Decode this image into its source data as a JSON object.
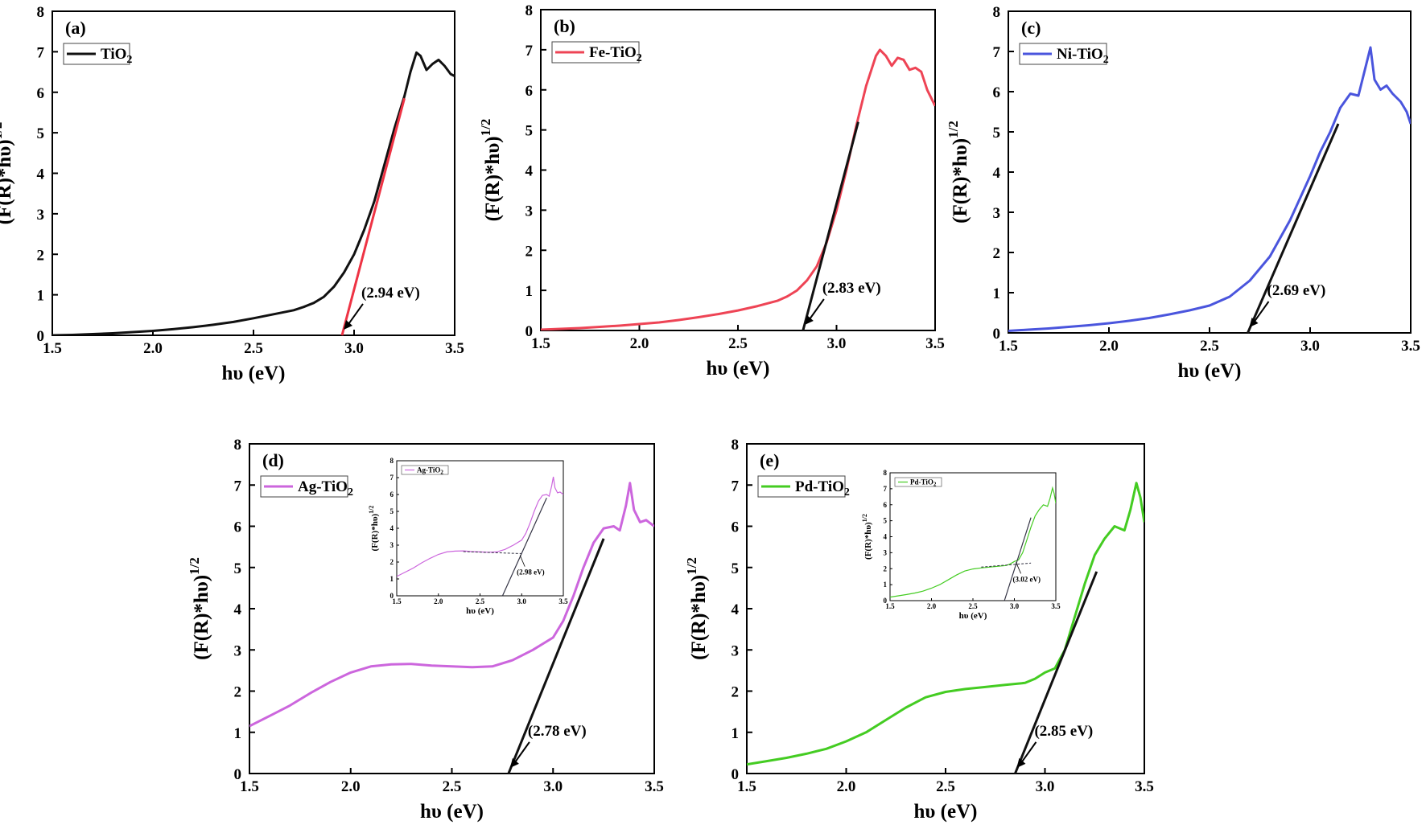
{
  "chart_data": [
    {
      "type": "line",
      "panel_label": "(a)",
      "xlabel": "hυ (eV)",
      "ylabel": "(F(R)*hυ)",
      "ylabel_sup": "1/2",
      "xlim": [
        1.5,
        3.5
      ],
      "ylim": [
        0,
        8
      ],
      "xticks": [
        "1.5",
        "2.0",
        "2.5",
        "3.0",
        "3.5"
      ],
      "yticks": [
        "0",
        "1",
        "2",
        "3",
        "4",
        "5",
        "6",
        "7",
        "8"
      ],
      "legend": {
        "name": "TiO",
        "sub": "2",
        "position": "top-left"
      },
      "series": [
        {
          "name": "TiO2",
          "color": "#111111",
          "x": [
            1.5,
            1.6,
            1.7,
            1.8,
            1.9,
            2.0,
            2.1,
            2.2,
            2.3,
            2.4,
            2.5,
            2.6,
            2.7,
            2.75,
            2.8,
            2.85,
            2.9,
            2.95,
            3.0,
            3.05,
            3.1,
            3.15,
            3.2,
            3.25,
            3.28,
            3.31,
            3.33,
            3.36,
            3.39,
            3.42,
            3.45,
            3.48,
            3.5
          ],
          "y": [
            0.0,
            0.01,
            0.03,
            0.05,
            0.08,
            0.11,
            0.15,
            0.2,
            0.26,
            0.33,
            0.42,
            0.52,
            0.62,
            0.7,
            0.8,
            0.95,
            1.2,
            1.55,
            2.0,
            2.6,
            3.3,
            4.2,
            5.1,
            5.9,
            6.5,
            6.98,
            6.9,
            6.55,
            6.7,
            6.8,
            6.65,
            6.45,
            6.4
          ]
        }
      ],
      "fit_line": {
        "x": [
          2.94,
          3.25
        ],
        "y": [
          0.0,
          5.85
        ],
        "color": "#ee3344"
      },
      "annotation": {
        "text": "(2.94 eV)",
        "x": 2.94
      }
    },
    {
      "type": "line",
      "panel_label": "(b)",
      "xlabel": "hυ (eV)",
      "ylabel": "(F(R)*hυ)",
      "ylabel_sup": "1/2",
      "xlim": [
        1.5,
        3.5
      ],
      "ylim": [
        0,
        8
      ],
      "xticks": [
        "1.5",
        "2.0",
        "2.5",
        "3.0",
        "3.5"
      ],
      "yticks": [
        "0",
        "1",
        "2",
        "3",
        "4",
        "5",
        "6",
        "7",
        "8"
      ],
      "legend": {
        "name": "Fe-TiO",
        "sub": "2",
        "position": "top-left"
      },
      "series": [
        {
          "name": "Fe-TiO2",
          "color": "#ee4455",
          "x": [
            1.5,
            1.6,
            1.7,
            1.8,
            1.9,
            2.0,
            2.1,
            2.2,
            2.3,
            2.4,
            2.5,
            2.6,
            2.7,
            2.75,
            2.8,
            2.85,
            2.9,
            2.95,
            3.0,
            3.05,
            3.1,
            3.15,
            3.2,
            3.22,
            3.25,
            3.28,
            3.31,
            3.34,
            3.37,
            3.4,
            3.43,
            3.46,
            3.5
          ],
          "y": [
            0.02,
            0.04,
            0.06,
            0.09,
            0.12,
            0.16,
            0.2,
            0.26,
            0.33,
            0.41,
            0.5,
            0.61,
            0.74,
            0.85,
            1.0,
            1.25,
            1.6,
            2.2,
            3.0,
            4.0,
            5.1,
            6.1,
            6.85,
            7.0,
            6.85,
            6.6,
            6.8,
            6.75,
            6.5,
            6.55,
            6.45,
            6.0,
            5.6
          ]
        }
      ],
      "fit_line": {
        "x": [
          2.83,
          3.11
        ],
        "y": [
          0.0,
          5.2
        ],
        "color": "#111111"
      },
      "annotation": {
        "text": "(2.83 eV)",
        "x": 2.83
      }
    },
    {
      "type": "line",
      "panel_label": "(c)",
      "xlabel": "hυ (eV)",
      "ylabel": "(F(R)*hυ)",
      "ylabel_sup": "1/2",
      "xlim": [
        1.5,
        3.5
      ],
      "ylim": [
        0,
        8
      ],
      "xticks": [
        "1.5",
        "2.0",
        "2.5",
        "3.0",
        "3.5"
      ],
      "yticks": [
        "0",
        "1",
        "2",
        "3",
        "4",
        "5",
        "6",
        "7",
        "8"
      ],
      "legend": {
        "name": "Ni-TiO",
        "sub": "2",
        "position": "top-left"
      },
      "series": [
        {
          "name": "Ni-TiO2",
          "color": "#4a55dd",
          "x": [
            1.5,
            1.6,
            1.7,
            1.8,
            1.9,
            2.0,
            2.1,
            2.2,
            2.3,
            2.4,
            2.5,
            2.6,
            2.7,
            2.8,
            2.9,
            3.0,
            3.05,
            3.1,
            3.15,
            3.2,
            3.24,
            3.27,
            3.3,
            3.32,
            3.35,
            3.38,
            3.41,
            3.45,
            3.48,
            3.5
          ],
          "y": [
            0.05,
            0.08,
            0.11,
            0.15,
            0.19,
            0.24,
            0.3,
            0.37,
            0.46,
            0.56,
            0.68,
            0.9,
            1.3,
            1.9,
            2.8,
            3.9,
            4.5,
            5.0,
            5.6,
            5.95,
            5.9,
            6.5,
            7.1,
            6.3,
            6.05,
            6.15,
            5.95,
            5.75,
            5.5,
            5.2
          ]
        }
      ],
      "fit_line": {
        "x": [
          2.69,
          3.14
        ],
        "y": [
          0.0,
          5.2
        ],
        "color": "#111111"
      },
      "annotation": {
        "text": "(2.69 eV)",
        "x": 2.69
      }
    },
    {
      "type": "line",
      "panel_label": "(d)",
      "xlabel": "hυ (eV)",
      "ylabel": "(F(R)*hυ)",
      "ylabel_sup": "1/2",
      "xlim": [
        1.5,
        3.5
      ],
      "ylim": [
        0,
        8
      ],
      "xticks": [
        "1.5",
        "2.0",
        "2.5",
        "3.0",
        "3.5"
      ],
      "yticks": [
        "0",
        "1",
        "2",
        "3",
        "4",
        "5",
        "6",
        "7",
        "8"
      ],
      "legend": {
        "name": "Ag-TiO",
        "sub": "2",
        "position": "top-left"
      },
      "series": [
        {
          "name": "Ag-TiO2",
          "color": "#cc66dd",
          "x": [
            1.5,
            1.6,
            1.7,
            1.8,
            1.9,
            2.0,
            2.1,
            2.2,
            2.3,
            2.4,
            2.5,
            2.6,
            2.7,
            2.8,
            2.9,
            3.0,
            3.05,
            3.1,
            3.15,
            3.2,
            3.25,
            3.3,
            3.33,
            3.36,
            3.38,
            3.4,
            3.43,
            3.46,
            3.5
          ],
          "y": [
            1.15,
            1.4,
            1.65,
            1.95,
            2.22,
            2.45,
            2.6,
            2.65,
            2.66,
            2.62,
            2.6,
            2.58,
            2.6,
            2.75,
            3.0,
            3.3,
            3.7,
            4.3,
            5.0,
            5.6,
            5.95,
            6.0,
            5.9,
            6.5,
            7.05,
            6.4,
            6.1,
            6.15,
            6.0
          ]
        }
      ],
      "fit_line": {
        "x": [
          2.78,
          3.25
        ],
        "y": [
          0.0,
          5.7
        ],
        "color": "#111111"
      },
      "annotation": {
        "text": "(2.78 eV)",
        "x": 2.78
      },
      "inset": {
        "xlabel": "hυ (eV)",
        "ylabel": "(F(R)*hυ)",
        "ylabel_sup": "1/2",
        "xticks": [
          "1.5",
          "2.0",
          "2.5",
          "3.0",
          "3.5"
        ],
        "yticks": [
          "0",
          "1",
          "2",
          "3",
          "4",
          "5",
          "6",
          "7",
          "8"
        ],
        "legend": {
          "name": "Ag-TiO",
          "sub": "2"
        },
        "baseline_line": {
          "x": [
            2.3,
            3.0
          ],
          "y": [
            2.62,
            2.5
          ]
        },
        "fit_line": {
          "x": [
            2.77,
            3.3
          ],
          "y": [
            0.0,
            5.8
          ]
        },
        "annotation": {
          "text": "(2.98 eV)",
          "x": 2.98
        }
      }
    },
    {
      "type": "line",
      "panel_label": "(e)",
      "xlabel": "hυ (eV)",
      "ylabel": "(F(R)*hυ)",
      "ylabel_sup": "1/2",
      "xlim": [
        1.5,
        3.5
      ],
      "ylim": [
        0,
        8
      ],
      "xticks": [
        "1.5",
        "2.0",
        "2.5",
        "3.0",
        "3.5"
      ],
      "yticks": [
        "0",
        "1",
        "2",
        "3",
        "4",
        "5",
        "6",
        "7",
        "8"
      ],
      "legend": {
        "name": "Pd-TiO",
        "sub": "2",
        "position": "top-left"
      },
      "series": [
        {
          "name": "Pd-TiO2",
          "color": "#44cc22",
          "x": [
            1.5,
            1.6,
            1.7,
            1.8,
            1.9,
            2.0,
            2.1,
            2.2,
            2.3,
            2.4,
            2.5,
            2.6,
            2.7,
            2.8,
            2.9,
            2.95,
            3.0,
            3.05,
            3.1,
            3.15,
            3.2,
            3.25,
            3.3,
            3.35,
            3.4,
            3.43,
            3.46,
            3.48,
            3.5
          ],
          "y": [
            0.22,
            0.3,
            0.38,
            0.48,
            0.6,
            0.78,
            1.0,
            1.3,
            1.6,
            1.85,
            1.98,
            2.05,
            2.1,
            2.15,
            2.2,
            2.3,
            2.45,
            2.55,
            3.0,
            3.8,
            4.6,
            5.3,
            5.7,
            6.0,
            5.9,
            6.4,
            7.05,
            6.7,
            6.1
          ]
        }
      ],
      "fit_line": {
        "x": [
          2.85,
          3.26
        ],
        "y": [
          0.0,
          4.9
        ],
        "color": "#111111"
      },
      "annotation": {
        "text": "(2.85 eV)",
        "x": 2.85
      },
      "inset": {
        "xlabel": "hυ (eV)",
        "ylabel": "(F(R)*hυ)",
        "ylabel_sup": "1/2",
        "xticks": [
          "1.5",
          "2.0",
          "2.5",
          "3.0",
          "3.5"
        ],
        "yticks": [
          "0",
          "1",
          "2",
          "3",
          "4",
          "5",
          "6",
          "7",
          "8"
        ],
        "legend": {
          "name": "Pd-TiO",
          "sub": "2"
        },
        "baseline_line": {
          "x": [
            2.6,
            3.2
          ],
          "y": [
            2.1,
            2.35
          ]
        },
        "fit_line": {
          "x": [
            2.88,
            3.2
          ],
          "y": [
            0.0,
            5.2
          ]
        },
        "annotation": {
          "text": "(3.02 eV)",
          "x": 3.02
        }
      }
    }
  ]
}
